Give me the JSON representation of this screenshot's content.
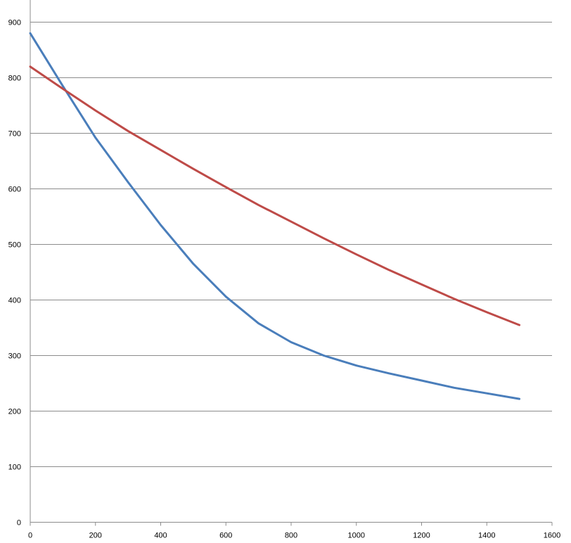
{
  "chart_data": {
    "type": "line",
    "title": "",
    "xlabel": "",
    "ylabel": "",
    "xlim": [
      0,
      1600
    ],
    "ylim": [
      0,
      900
    ],
    "x_ticks": [
      0,
      200,
      400,
      600,
      800,
      1000,
      1200,
      1400,
      1600
    ],
    "y_ticks": [
      0,
      100,
      200,
      300,
      400,
      500,
      600,
      700,
      800,
      900
    ],
    "grid": "horizontal",
    "legend": "none",
    "series": [
      {
        "color": "#4a7ebb",
        "points": [
          [
            0,
            880
          ],
          [
            100,
            785
          ],
          [
            200,
            692
          ],
          [
            300,
            612
          ],
          [
            400,
            535
          ],
          [
            500,
            465
          ],
          [
            600,
            406
          ],
          [
            700,
            358
          ],
          [
            800,
            324
          ],
          [
            900,
            300
          ],
          [
            1000,
            282
          ],
          [
            1100,
            268
          ],
          [
            1200,
            255
          ],
          [
            1300,
            242
          ],
          [
            1400,
            232
          ],
          [
            1500,
            222
          ]
        ]
      },
      {
        "color": "#be4b48",
        "points": [
          [
            0,
            820
          ],
          [
            100,
            780
          ],
          [
            200,
            741
          ],
          [
            300,
            704
          ],
          [
            400,
            670
          ],
          [
            500,
            636
          ],
          [
            600,
            603
          ],
          [
            700,
            571
          ],
          [
            800,
            541
          ],
          [
            900,
            511
          ],
          [
            1000,
            482
          ],
          [
            1100,
            454
          ],
          [
            1200,
            428
          ],
          [
            1300,
            402
          ],
          [
            1400,
            378
          ],
          [
            1500,
            355
          ]
        ]
      }
    ]
  }
}
